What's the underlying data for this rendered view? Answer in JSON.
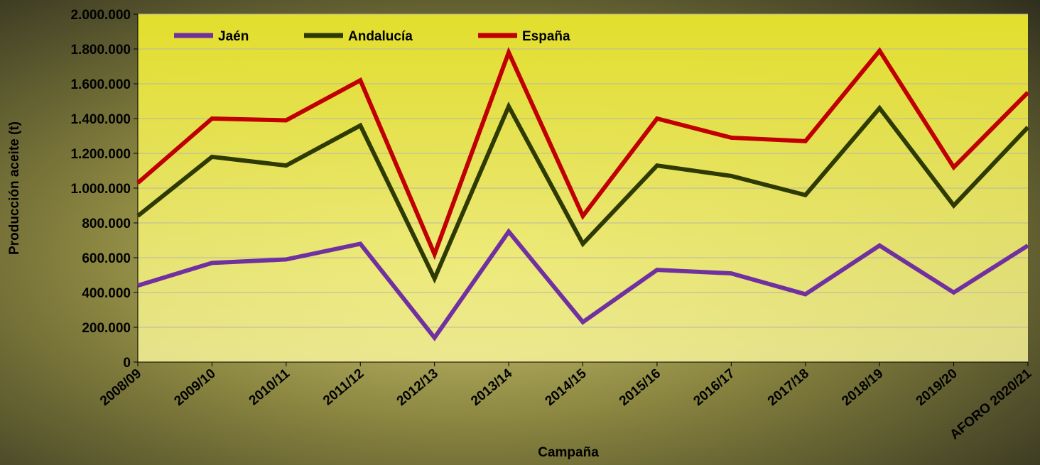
{
  "chart_data": {
    "type": "line",
    "xlabel": "Campaña",
    "ylabel": "Producción aceite (t)",
    "categories": [
      "2008/09",
      "2009/10",
      "2010/11",
      "2011/12",
      "2012/13",
      "2013/14",
      "2014/15",
      "2015/16",
      "2016/17",
      "2017/18",
      "2018/19",
      "2019/20",
      "AFORO 2020/21"
    ],
    "series": [
      {
        "name": "Jaén",
        "color": "#7030a0",
        "values": [
          440000,
          570000,
          590000,
          680000,
          140000,
          750000,
          230000,
          530000,
          510000,
          390000,
          670000,
          400000,
          670000
        ]
      },
      {
        "name": "Andalucía",
        "color": "#2e3a00",
        "values": [
          840000,
          1180000,
          1130000,
          1360000,
          480000,
          1470000,
          680000,
          1130000,
          1070000,
          960000,
          1460000,
          900000,
          1350000
        ]
      },
      {
        "name": "España",
        "color": "#c00000",
        "values": [
          1030000,
          1400000,
          1390000,
          1620000,
          620000,
          1780000,
          840000,
          1400000,
          1290000,
          1270000,
          1790000,
          1120000,
          1550000
        ]
      }
    ],
    "ylim": [
      0,
      2000000
    ],
    "yticks": [
      0,
      {
        "value": 200000,
        "label": "200.000"
      },
      {
        "value": 400000,
        "label": "400.000"
      },
      {
        "value": 600000,
        "label": "600.000"
      },
      {
        "value": 800000,
        "label": "800.000"
      },
      {
        "value": 1000000,
        "label": "1.000.000"
      },
      {
        "value": 1200000,
        "label": "1.200.000"
      },
      {
        "value": 1400000,
        "label": "1.400.000"
      },
      {
        "value": 1600000,
        "label": "1.600.000"
      },
      {
        "value": 1800000,
        "label": "1.800.000"
      },
      {
        "value": 2000000,
        "label": "2.000.000"
      }
    ],
    "grid": true,
    "legend": "top"
  }
}
